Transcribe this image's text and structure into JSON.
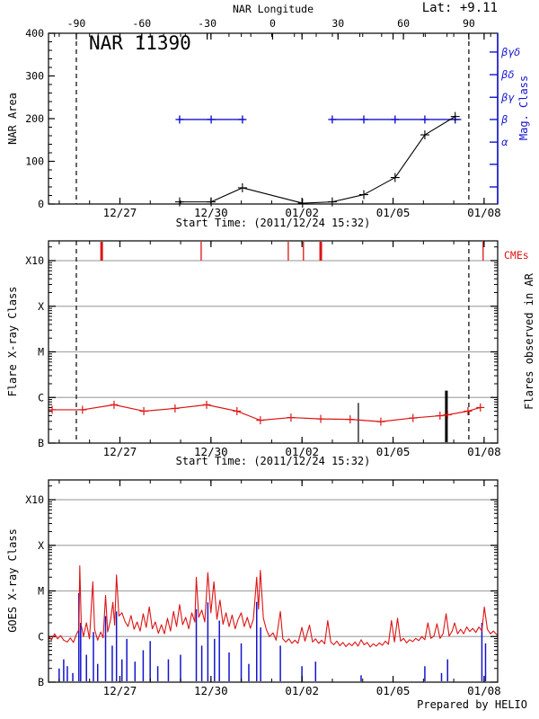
{
  "figure": {
    "background": "#ffffff",
    "colors": {
      "black": "#000000",
      "red": "#dd1414",
      "blue": "#1414cc",
      "grid_gray": "#a9a9a9"
    }
  },
  "chart_data": {
    "type": "line",
    "time_axis": {
      "start_label": "Start Time: (2011/12/24 15:32)",
      "range_days": [
        0,
        14.8
      ],
      "major": [
        {
          "t": 2.353,
          "label": "12/27"
        },
        {
          "t": 5.353,
          "label": "12/30"
        },
        {
          "t": 8.353,
          "label": "01/02"
        },
        {
          "t": 11.353,
          "label": "01/05"
        },
        {
          "t": 14.353,
          "label": "01/08"
        }
      ],
      "minor": {
        "start": 0.353,
        "step": 1,
        "count": 15
      }
    },
    "panels": [
      {
        "title": "NAR 11390",
        "lat_label": "Lat:  +9.11",
        "ylabel": "NAR Area",
        "ylim": [
          0,
          400
        ],
        "ytick_step": 100,
        "yminor_step": 20,
        "xtitle": "Start Time: (2011/12/24 15:32)",
        "top_axis": {
          "title": "NAR Longitude",
          "lon_range": [
            -90,
            90
          ],
          "t_range": [
            0.917,
            13.85
          ],
          "major_step": 30,
          "minor_step": 10,
          "minor_span": [
            -100,
            100
          ]
        },
        "limb_lines_t": [
          0.917,
          13.85
        ],
        "area_series": {
          "color": "#000000",
          "points": [
            [
              4.32,
              5
            ],
            [
              5.36,
              5
            ],
            [
              6.39,
              38
            ],
            [
              8.37,
              2
            ],
            [
              9.35,
              5
            ],
            [
              10.39,
              22
            ],
            [
              11.42,
              62
            ],
            [
              12.4,
              162
            ],
            [
              13.4,
              205
            ]
          ]
        },
        "mag_axis": {
          "label": "Mag. Class",
          "color": "#1414cc",
          "tick_area_values": [
            356,
            303,
            250,
            198,
            145,
            93,
            40
          ],
          "tick_labels": [
            "βγδ",
            "βδ",
            "βγ",
            "β",
            "α",
            "",
            ""
          ]
        },
        "mag_segments": [
          {
            "area_level": 198,
            "t_start": 4.28,
            "t_end": 6.45,
            "marker_ts": [
              4.32,
              5.36,
              6.39
            ]
          },
          {
            "area_level": 198,
            "t_start": 9.3,
            "t_end": 13.6,
            "marker_ts": [
              9.35,
              10.39,
              11.42,
              12.4,
              13.4
            ]
          }
        ]
      },
      {
        "ylabel": "Flare X-ray Class",
        "right_label": "Flares observed in AR",
        "cme_label": "CMEs",
        "xtitle": "Start Time: (2011/12/24 15:32)",
        "ytick_labels": [
          "X10",
          "X",
          "M",
          "C",
          "B"
        ],
        "ytick_decades": [
          4,
          3,
          2,
          1,
          0
        ],
        "gridline_decades": [
          1,
          2,
          3,
          4
        ],
        "limb_lines_t": [
          0.917,
          13.85
        ],
        "flare_curve": {
          "color": "#dd1414",
          "points": [
            [
              0.12,
              0.73
            ],
            [
              1.12,
              0.73
            ],
            [
              2.16,
              0.84
            ],
            [
              3.14,
              0.7
            ],
            [
              4.17,
              0.76
            ],
            [
              5.21,
              0.84
            ],
            [
              6.21,
              0.7
            ],
            [
              6.98,
              0.5
            ],
            [
              7.99,
              0.56
            ],
            [
              8.97,
              0.53
            ],
            [
              9.94,
              0.52
            ],
            [
              10.95,
              0.47
            ],
            [
              12.01,
              0.55
            ],
            [
              12.9,
              0.6
            ],
            [
              13.15,
              0.62
            ],
            [
              13.82,
              0.7
            ],
            [
              14.23,
              0.78
            ]
          ]
        },
        "flare_lines": [
          {
            "t": 10.21,
            "top": 0.88,
            "width": 1.2
          },
          {
            "t": 13.11,
            "top": 1.15,
            "width": 3
          }
        ],
        "cme_ticks": [
          {
            "t": 1.75,
            "width": 3
          },
          {
            "t": 5.03,
            "width": 1.3
          },
          {
            "t": 7.9,
            "width": 1.3
          },
          {
            "t": 8.4,
            "width": 1.3
          },
          {
            "t": 8.97,
            "width": 3
          },
          {
            "t": 14.32,
            "width": 1.3
          }
        ]
      },
      {
        "ylabel": "GOES X-ray Class",
        "credit": "Prepared by HELIO",
        "ytick_labels": [
          "X10",
          "X",
          "M",
          "C",
          "B"
        ],
        "ytick_decades": [
          4,
          3,
          2,
          1,
          0
        ],
        "gridline_decades": [
          1,
          2,
          3,
          4
        ],
        "long_channel": {
          "color": "#dd1414",
          "points": [
            [
              0,
              1.0
            ],
            [
              0.1,
              0.93
            ],
            [
              0.2,
              1.06
            ],
            [
              0.3,
              0.95
            ],
            [
              0.4,
              1.02
            ],
            [
              0.5,
              0.92
            ],
            [
              0.62,
              0.88
            ],
            [
              0.72,
              0.97
            ],
            [
              0.82,
              0.87
            ],
            [
              0.92,
              1.05
            ],
            [
              1.0,
              1.15
            ],
            [
              1.03,
              2.55
            ],
            [
              1.08,
              1.25
            ],
            [
              1.15,
              1.0
            ],
            [
              1.25,
              1.3
            ],
            [
              1.35,
              0.95
            ],
            [
              1.46,
              2.2
            ],
            [
              1.52,
              1.15
            ],
            [
              1.62,
              0.92
            ],
            [
              1.72,
              1.1
            ],
            [
              1.8,
              0.97
            ],
            [
              1.88,
              1.9
            ],
            [
              1.95,
              1.1
            ],
            [
              2.05,
              1.38
            ],
            [
              2.12,
              1.75
            ],
            [
              2.18,
              1.25
            ],
            [
              2.24,
              2.35
            ],
            [
              2.32,
              1.45
            ],
            [
              2.42,
              1.52
            ],
            [
              2.52,
              1.33
            ],
            [
              2.62,
              1.22
            ],
            [
              2.72,
              1.46
            ],
            [
              2.82,
              1.16
            ],
            [
              2.92,
              1.32
            ],
            [
              3.02,
              1.12
            ],
            [
              3.12,
              1.5
            ],
            [
              3.22,
              1.2
            ],
            [
              3.32,
              1.65
            ],
            [
              3.42,
              1.17
            ],
            [
              3.52,
              1.32
            ],
            [
              3.62,
              1.07
            ],
            [
              3.72,
              1.26
            ],
            [
              3.82,
              1.06
            ],
            [
              3.92,
              1.4
            ],
            [
              4.02,
              1.12
            ],
            [
              4.12,
              1.55
            ],
            [
              4.22,
              1.22
            ],
            [
              4.32,
              1.7
            ],
            [
              4.42,
              1.26
            ],
            [
              4.52,
              1.42
            ],
            [
              4.62,
              1.17
            ],
            [
              4.72,
              1.52
            ],
            [
              4.82,
              1.32
            ],
            [
              4.87,
              2.3
            ],
            [
              4.95,
              1.42
            ],
            [
              5.05,
              1.58
            ],
            [
              5.15,
              1.32
            ],
            [
              5.25,
              2.4
            ],
            [
              5.35,
              1.52
            ],
            [
              5.45,
              2.2
            ],
            [
              5.55,
              1.38
            ],
            [
              5.65,
              1.8
            ],
            [
              5.75,
              1.27
            ],
            [
              5.85,
              1.52
            ],
            [
              5.95,
              1.22
            ],
            [
              6.05,
              1.47
            ],
            [
              6.15,
              1.17
            ],
            [
              6.25,
              1.38
            ],
            [
              6.35,
              1.52
            ],
            [
              6.45,
              1.22
            ],
            [
              6.55,
              1.42
            ],
            [
              6.65,
              1.18
            ],
            [
              6.75,
              1.38
            ],
            [
              6.86,
              2.3
            ],
            [
              6.92,
              1.6
            ],
            [
              6.98,
              2.45
            ],
            [
              7.08,
              1.4
            ],
            [
              7.18,
              1.15
            ],
            [
              7.28,
              1.0
            ],
            [
              7.4,
              1.08
            ],
            [
              7.5,
              0.92
            ],
            [
              7.64,
              1.55
            ],
            [
              7.72,
              0.95
            ],
            [
              7.82,
              0.88
            ],
            [
              7.92,
              0.95
            ],
            [
              8.02,
              0.85
            ],
            [
              8.12,
              0.92
            ],
            [
              8.22,
              0.85
            ],
            [
              8.35,
              1.2
            ],
            [
              8.45,
              0.9
            ],
            [
              8.6,
              1.25
            ],
            [
              8.7,
              0.88
            ],
            [
              8.8,
              0.95
            ],
            [
              8.9,
              0.85
            ],
            [
              9.0,
              0.92
            ],
            [
              9.1,
              0.84
            ],
            [
              9.2,
              1.35
            ],
            [
              9.3,
              0.88
            ],
            [
              9.4,
              0.82
            ],
            [
              9.5,
              0.9
            ],
            [
              9.6,
              0.8
            ],
            [
              9.7,
              0.87
            ],
            [
              9.8,
              0.78
            ],
            [
              9.9,
              0.85
            ],
            [
              10.0,
              0.8
            ],
            [
              10.1,
              0.88
            ],
            [
              10.2,
              0.79
            ],
            [
              10.3,
              0.93
            ],
            [
              10.4,
              0.82
            ],
            [
              10.5,
              0.87
            ],
            [
              10.6,
              0.77
            ],
            [
              10.7,
              0.84
            ],
            [
              10.8,
              0.79
            ],
            [
              10.9,
              0.86
            ],
            [
              11.0,
              0.81
            ],
            [
              11.1,
              0.9
            ],
            [
              11.2,
              0.83
            ],
            [
              11.3,
              1.35
            ],
            [
              11.4,
              0.88
            ],
            [
              11.5,
              1.4
            ],
            [
              11.6,
              0.9
            ],
            [
              11.7,
              0.96
            ],
            [
              11.8,
              0.86
            ],
            [
              11.9,
              0.93
            ],
            [
              12.0,
              0.89
            ],
            [
              12.1,
              0.96
            ],
            [
              12.2,
              0.91
            ],
            [
              12.3,
              1.0
            ],
            [
              12.4,
              0.93
            ],
            [
              12.5,
              1.3
            ],
            [
              12.6,
              0.96
            ],
            [
              12.7,
              1.01
            ],
            [
              12.8,
              1.28
            ],
            [
              12.9,
              0.96
            ],
            [
              13.0,
              1.06
            ],
            [
              13.1,
              1.5
            ],
            [
              13.2,
              1.01
            ],
            [
              13.3,
              1.12
            ],
            [
              13.38,
              1.3
            ],
            [
              13.48,
              1.06
            ],
            [
              13.58,
              1.16
            ],
            [
              13.68,
              1.06
            ],
            [
              13.78,
              1.21
            ],
            [
              13.88,
              1.11
            ],
            [
              13.98,
              1.18
            ],
            [
              14.08,
              1.09
            ],
            [
              14.18,
              1.21
            ],
            [
              14.28,
              1.12
            ],
            [
              14.36,
              1.65
            ],
            [
              14.46,
              1.16
            ],
            [
              14.56,
              1.06
            ],
            [
              14.66,
              1.12
            ],
            [
              14.8,
              1.02
            ]
          ]
        },
        "short_channel": {
          "color": "#1414cc",
          "spikes": [
            [
              0.35,
              0.3
            ],
            [
              0.5,
              0.5
            ],
            [
              0.62,
              0.35
            ],
            [
              0.8,
              0.2
            ],
            [
              1.0,
              1.95
            ],
            [
              1.06,
              1.3
            ],
            [
              1.25,
              0.6
            ],
            [
              1.48,
              1.1
            ],
            [
              1.62,
              0.4
            ],
            [
              1.88,
              1.45
            ],
            [
              2.1,
              0.8
            ],
            [
              2.24,
              1.55
            ],
            [
              2.42,
              0.5
            ],
            [
              2.58,
              0.95
            ],
            [
              2.85,
              0.45
            ],
            [
              3.12,
              0.7
            ],
            [
              3.35,
              0.9
            ],
            [
              3.6,
              0.35
            ],
            [
              3.95,
              0.5
            ],
            [
              4.35,
              0.6
            ],
            [
              4.87,
              1.6
            ],
            [
              5.05,
              0.8
            ],
            [
              5.25,
              1.75
            ],
            [
              5.47,
              0.95
            ],
            [
              5.63,
              1.35
            ],
            [
              5.95,
              0.65
            ],
            [
              6.35,
              0.85
            ],
            [
              6.6,
              0.4
            ],
            [
              6.86,
              1.76
            ],
            [
              6.99,
              1.2
            ],
            [
              7.64,
              0.8
            ],
            [
              8.35,
              0.35
            ],
            [
              8.8,
              0.45
            ],
            [
              10.3,
              0.15
            ],
            [
              12.4,
              0.35
            ],
            [
              12.95,
              0.2
            ],
            [
              13.15,
              0.5
            ],
            [
              14.28,
              1.3
            ],
            [
              14.4,
              0.85
            ]
          ]
        }
      }
    ]
  }
}
